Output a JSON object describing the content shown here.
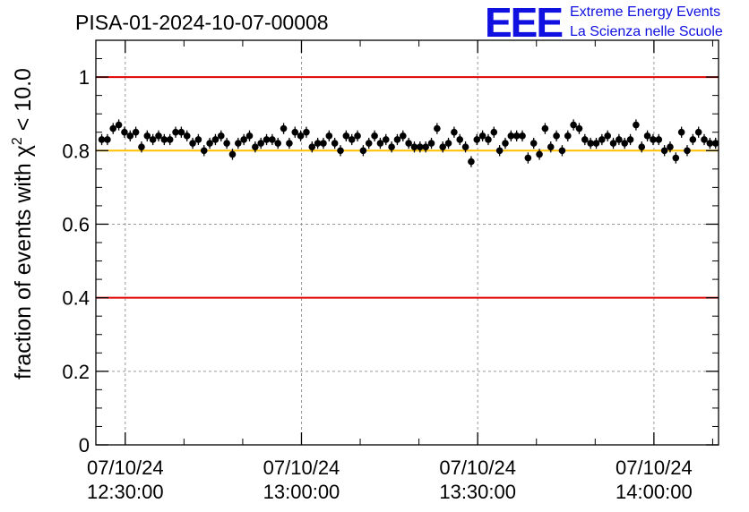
{
  "chart_data": {
    "type": "scatter",
    "title": "PISA-01-2024-10-07-00008",
    "ylabel_prefix": "fraction of events with ",
    "ylabel_chi": "χ",
    "ylabel_sup": "2",
    "ylabel_suffix": " < 10.0",
    "xlabel": "",
    "x_unit": "minutes since 07/10/24 12:30:00",
    "xlim": [
      -5,
      101
    ],
    "ylim": [
      0,
      1.1
    ],
    "y_ticks": [
      {
        "value": 0,
        "label": "0"
      },
      {
        "value": 0.2,
        "label": "0.2"
      },
      {
        "value": 0.4,
        "label": "0.4"
      },
      {
        "value": 0.6,
        "label": "0.6"
      },
      {
        "value": 0.8,
        "label": "0.8"
      },
      {
        "value": 1.0,
        "label": "1"
      }
    ],
    "x_ticks": [
      {
        "value": 0,
        "label_date": "07/10/24",
        "label_time": "12:30:00"
      },
      {
        "value": 30,
        "label_date": "07/10/24",
        "label_time": "13:00:00"
      },
      {
        "value": 60,
        "label_date": "07/10/24",
        "label_time": "13:30:00"
      },
      {
        "value": 90,
        "label_date": "07/10/24",
        "label_time": "14:00:00"
      }
    ],
    "grid": true,
    "reference_lines": [
      {
        "y": 1.0,
        "color": "#e00000"
      },
      {
        "y": 0.4,
        "color": "#e00000"
      },
      {
        "y": 0.8,
        "color": "#ffc000"
      }
    ],
    "error_bar": 0.015,
    "point_color": "#000000",
    "series": [
      {
        "values": [
          0.83,
          0.83,
          0.86,
          0.87,
          0.85,
          0.84,
          0.85,
          0.81,
          0.84,
          0.83,
          0.84,
          0.83,
          0.83,
          0.85,
          0.85,
          0.84,
          0.82,
          0.83,
          0.8,
          0.82,
          0.83,
          0.84,
          0.82,
          0.79,
          0.82,
          0.83,
          0.84,
          0.81,
          0.82,
          0.83,
          0.83,
          0.82,
          0.86,
          0.82,
          0.85,
          0.84,
          0.85,
          0.81,
          0.82,
          0.82,
          0.84,
          0.82,
          0.8,
          0.84,
          0.83,
          0.84,
          0.8,
          0.82,
          0.84,
          0.82,
          0.83,
          0.81,
          0.83,
          0.84,
          0.82,
          0.81,
          0.81,
          0.81,
          0.82,
          0.86,
          0.81,
          0.82,
          0.85,
          0.83,
          0.81,
          0.77,
          0.83,
          0.84,
          0.83,
          0.85,
          0.8,
          0.82,
          0.84,
          0.84,
          0.84,
          0.78,
          0.82,
          0.79,
          0.86,
          0.81,
          0.84,
          0.8,
          0.84,
          0.87,
          0.86,
          0.83,
          0.82,
          0.82,
          0.83,
          0.84,
          0.82,
          0.83,
          0.82,
          0.83,
          0.87,
          0.81,
          0.84,
          0.83,
          0.83,
          0.8,
          0.81,
          0.78,
          0.85,
          0.8,
          0.83,
          0.85,
          0.83,
          0.82,
          0.82
        ]
      }
    ]
  },
  "logo": {
    "letters": "EEE",
    "line1": "Extreme Energy Events",
    "line2": "La Scienza nelle Scuole",
    "color": "#1010e0"
  }
}
